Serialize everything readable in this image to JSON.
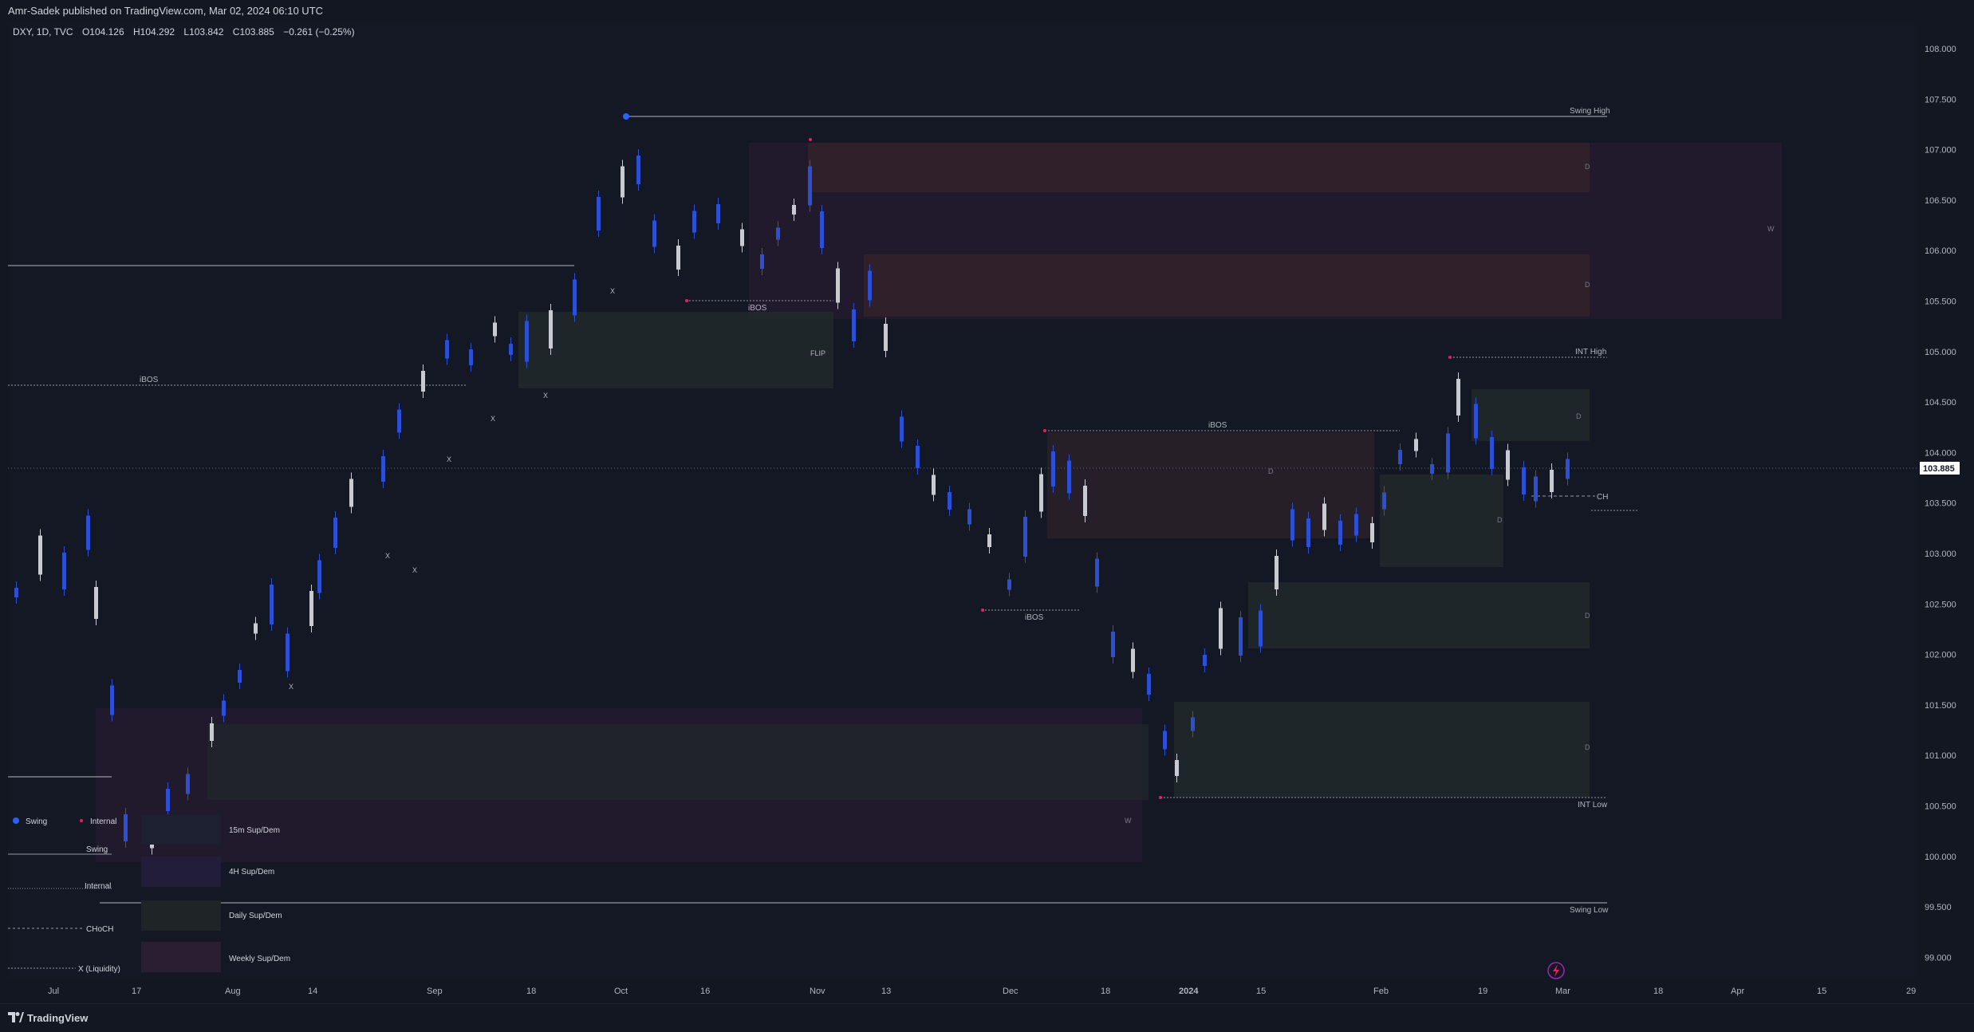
{
  "publisher": "Amr-Sadek published on TradingView.com, Mar 02, 2024 06:10 UTC",
  "ohlc": {
    "symbol": "DXY, 1D, TVC",
    "open": "O104.126",
    "high": "H104.292",
    "low": "L103.842",
    "close": "C103.885",
    "change": "−0.261 (−0.25%)"
  },
  "price_axis": {
    "ticks": [
      "108.000",
      "107.500",
      "107.000",
      "106.500",
      "106.000",
      "105.500",
      "105.000",
      "104.500",
      "104.000",
      "103.500",
      "103.000",
      "102.500",
      "102.000",
      "101.500",
      "101.000",
      "100.500",
      "100.000",
      "99.500",
      "99.000"
    ],
    "current_price": "103.885"
  },
  "time_axis": {
    "labels": [
      "Jul",
      "17",
      "Aug",
      "14",
      "Sep",
      "18",
      "Oct",
      "16",
      "Nov",
      "13",
      "Dec",
      "18",
      "2024",
      "15",
      "Feb",
      "19",
      "Mar",
      "18",
      "Apr",
      "15",
      "29"
    ]
  },
  "annotations": {
    "swing_high": "Swing High",
    "swing_low": "Swing Low",
    "int_high": "INT High",
    "int_low": "INT Low",
    "ibos": "iBOS",
    "ch": "CH",
    "flip": "FLIP",
    "d": "D",
    "w": "W",
    "x": "X"
  },
  "legend": {
    "swing": "Swing",
    "internal": "Internal",
    "line_swing": "Swing",
    "line_internal": "Internal",
    "line_choch": "CHoCH",
    "line_liquidity": "X (Liquidity)",
    "box_15m": "15m Sup/Dem",
    "box_4h": "4H Sup/Dem",
    "box_daily": "Daily Sup/Dem",
    "box_weekly": "Weekly Sup/Dem"
  },
  "footer": {
    "brand": "TradingView"
  },
  "colors": {
    "background": "#131722",
    "bull_candle": "#2d4fd6",
    "bear_candle": "#c9c9d1",
    "swing_marker": "#2962ff",
    "internal_marker": "#e91e63",
    "current_price_bg": "#ffffff"
  }
}
